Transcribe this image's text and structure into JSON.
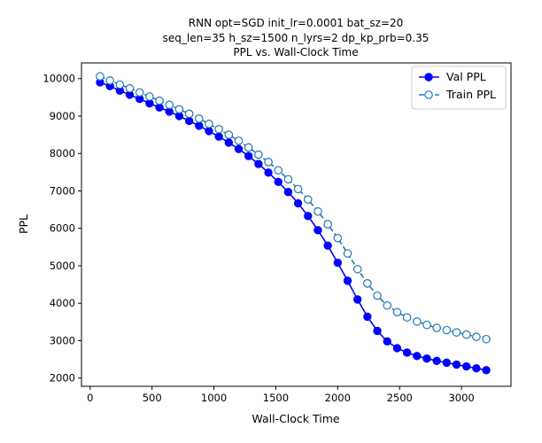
{
  "chart_data": {
    "type": "line",
    "title_lines": [
      "RNN opt=SGD init_lr=0.0001 bat_sz=20",
      "seq_len=35 h_sz=1500 n_lyrs=2 dp_kp_prb=0.35",
      "PPL vs. Wall-Clock Time"
    ],
    "xlabel": "Wall-Clock Time",
    "ylabel": "PPL",
    "xlim": [
      -70,
      3400
    ],
    "ylim": [
      1780,
      10420
    ],
    "xticks": [
      0,
      500,
      1000,
      1500,
      2000,
      2500,
      3000
    ],
    "yticks": [
      2000,
      3000,
      4000,
      5000,
      6000,
      7000,
      8000,
      9000,
      10000
    ],
    "grid": false,
    "legend_position": "upper right",
    "series": [
      {
        "name": "Val PPL",
        "color": "#0000ff",
        "line_style": "solid",
        "marker": "filled-circle",
        "x": [
          80,
          160,
          240,
          320,
          400,
          480,
          560,
          640,
          720,
          800,
          880,
          960,
          1040,
          1120,
          1200,
          1280,
          1360,
          1440,
          1520,
          1600,
          1680,
          1760,
          1840,
          1920,
          2000,
          2080,
          2160,
          2240,
          2320,
          2400,
          2480,
          2560,
          2640,
          2720,
          2800,
          2880,
          2960,
          3040,
          3120,
          3200
        ],
        "y": [
          9900,
          9800,
          9680,
          9570,
          9460,
          9340,
          9230,
          9120,
          9000,
          8870,
          8740,
          8600,
          8450,
          8290,
          8120,
          7930,
          7720,
          7490,
          7240,
          6970,
          6670,
          6330,
          5950,
          5540,
          5080,
          4600,
          4100,
          3640,
          3260,
          2980,
          2800,
          2680,
          2590,
          2520,
          2460,
          2410,
          2360,
          2310,
          2260,
          2210
        ]
      },
      {
        "name": "Train PPL",
        "color": "#1f77b4",
        "line_style": "dashed",
        "marker": "open-circle",
        "x": [
          80,
          160,
          240,
          320,
          400,
          480,
          560,
          640,
          720,
          800,
          880,
          960,
          1040,
          1120,
          1200,
          1280,
          1360,
          1440,
          1520,
          1600,
          1680,
          1760,
          1840,
          1920,
          2000,
          2080,
          2160,
          2240,
          2320,
          2400,
          2480,
          2560,
          2640,
          2720,
          2800,
          2880,
          2960,
          3040,
          3120,
          3200
        ],
        "y": [
          10060,
          9950,
          9840,
          9740,
          9630,
          9520,
          9410,
          9300,
          9180,
          9060,
          8930,
          8790,
          8650,
          8500,
          8340,
          8160,
          7970,
          7770,
          7550,
          7310,
          7050,
          6770,
          6450,
          6110,
          5740,
          5330,
          4910,
          4530,
          4200,
          3940,
          3760,
          3620,
          3510,
          3420,
          3340,
          3280,
          3220,
          3160,
          3100,
          3040
        ]
      }
    ]
  }
}
